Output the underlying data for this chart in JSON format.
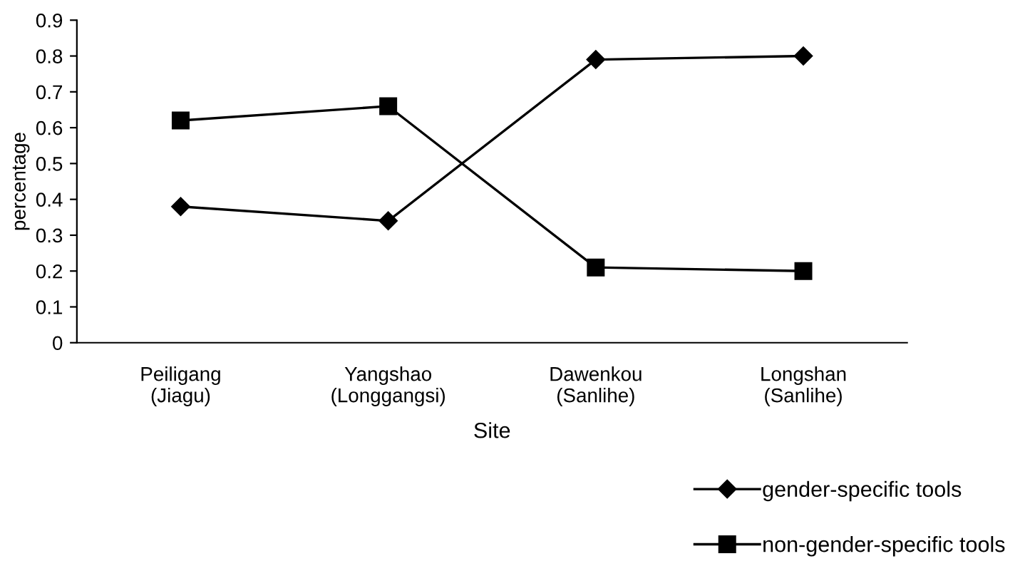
{
  "chart_data": {
    "type": "line",
    "xlabel": "Site",
    "ylabel": "percentage",
    "categories": [
      "Peiligang\n(Jiagu)",
      "Yangshao\n(Longgangsi)",
      "Dawenkou\n(Sanlihe)",
      "Longshan\n(Sanlihe)"
    ],
    "series": [
      {
        "name": "gender-specific tools",
        "color": "#000000",
        "marker": "diamond",
        "values": [
          0.38,
          0.34,
          0.79,
          0.8
        ]
      },
      {
        "name": "non-gender-specific tools",
        "color": "#000000",
        "marker": "square",
        "values": [
          0.62,
          0.66,
          0.21,
          0.2
        ]
      }
    ],
    "ylim": [
      0,
      0.9
    ],
    "yticks": [
      0,
      0.1,
      0.2,
      0.3,
      0.4,
      0.5,
      0.6,
      0.7,
      0.8,
      0.9
    ],
    "legend": "bottom right",
    "grid": false
  }
}
